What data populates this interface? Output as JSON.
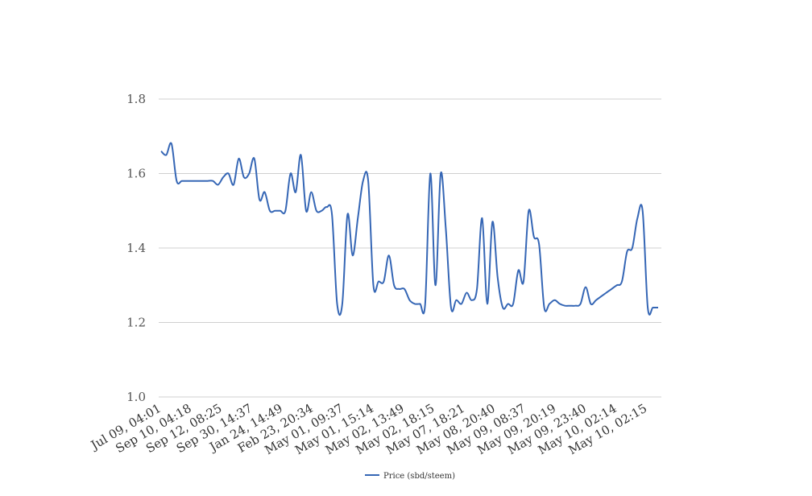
{
  "chart_data": {
    "type": "line",
    "title": "",
    "xlabel": "",
    "ylabel": "",
    "ylim": [
      1.0,
      1.8
    ],
    "yticks": [
      "1.0",
      "1.2",
      "1.4",
      "1.6",
      "1.8"
    ],
    "grid": true,
    "legend_position": "bottom-center",
    "xtick_labels": [
      "Jul 09, 04:01",
      "Sep 10, 04:18",
      "Sep 12, 08:25",
      "Sep 30, 14:37",
      "Jan 24, 14:49",
      "Feb 23, 20:34",
      "May 01, 09:37",
      "May 01, 15:14",
      "May 02, 13:49",
      "May 02, 18:15",
      "May 07, 18:21",
      "May 08, 20:40",
      "May 09, 08:37",
      "May 09, 20:19",
      "May 09, 23:40",
      "May 10, 02:14",
      "May 10, 02:15"
    ],
    "series": [
      {
        "name": "Price (sbd/steem)",
        "color": "#3566b5",
        "values": [
          1.66,
          1.65,
          1.68,
          1.58,
          1.58,
          1.58,
          1.58,
          1.58,
          1.58,
          1.58,
          1.58,
          1.57,
          1.59,
          1.6,
          1.57,
          1.64,
          1.59,
          1.6,
          1.64,
          1.53,
          1.55,
          1.5,
          1.5,
          1.5,
          1.5,
          1.6,
          1.55,
          1.65,
          1.5,
          1.55,
          1.5,
          1.5,
          1.51,
          1.49,
          1.25,
          1.25,
          1.49,
          1.38,
          1.48,
          1.58,
          1.58,
          1.3,
          1.31,
          1.31,
          1.38,
          1.3,
          1.29,
          1.29,
          1.26,
          1.25,
          1.25,
          1.25,
          1.6,
          1.3,
          1.6,
          1.45,
          1.24,
          1.26,
          1.25,
          1.28,
          1.26,
          1.29,
          1.48,
          1.25,
          1.47,
          1.32,
          1.24,
          1.25,
          1.25,
          1.34,
          1.31,
          1.5,
          1.43,
          1.41,
          1.24,
          1.25,
          1.26,
          1.25,
          1.245,
          1.245,
          1.245,
          1.25,
          1.295,
          1.25,
          1.26,
          1.27,
          1.28,
          1.29,
          1.3,
          1.31,
          1.39,
          1.4,
          1.48,
          1.5,
          1.24,
          1.24,
          1.24
        ]
      }
    ]
  }
}
